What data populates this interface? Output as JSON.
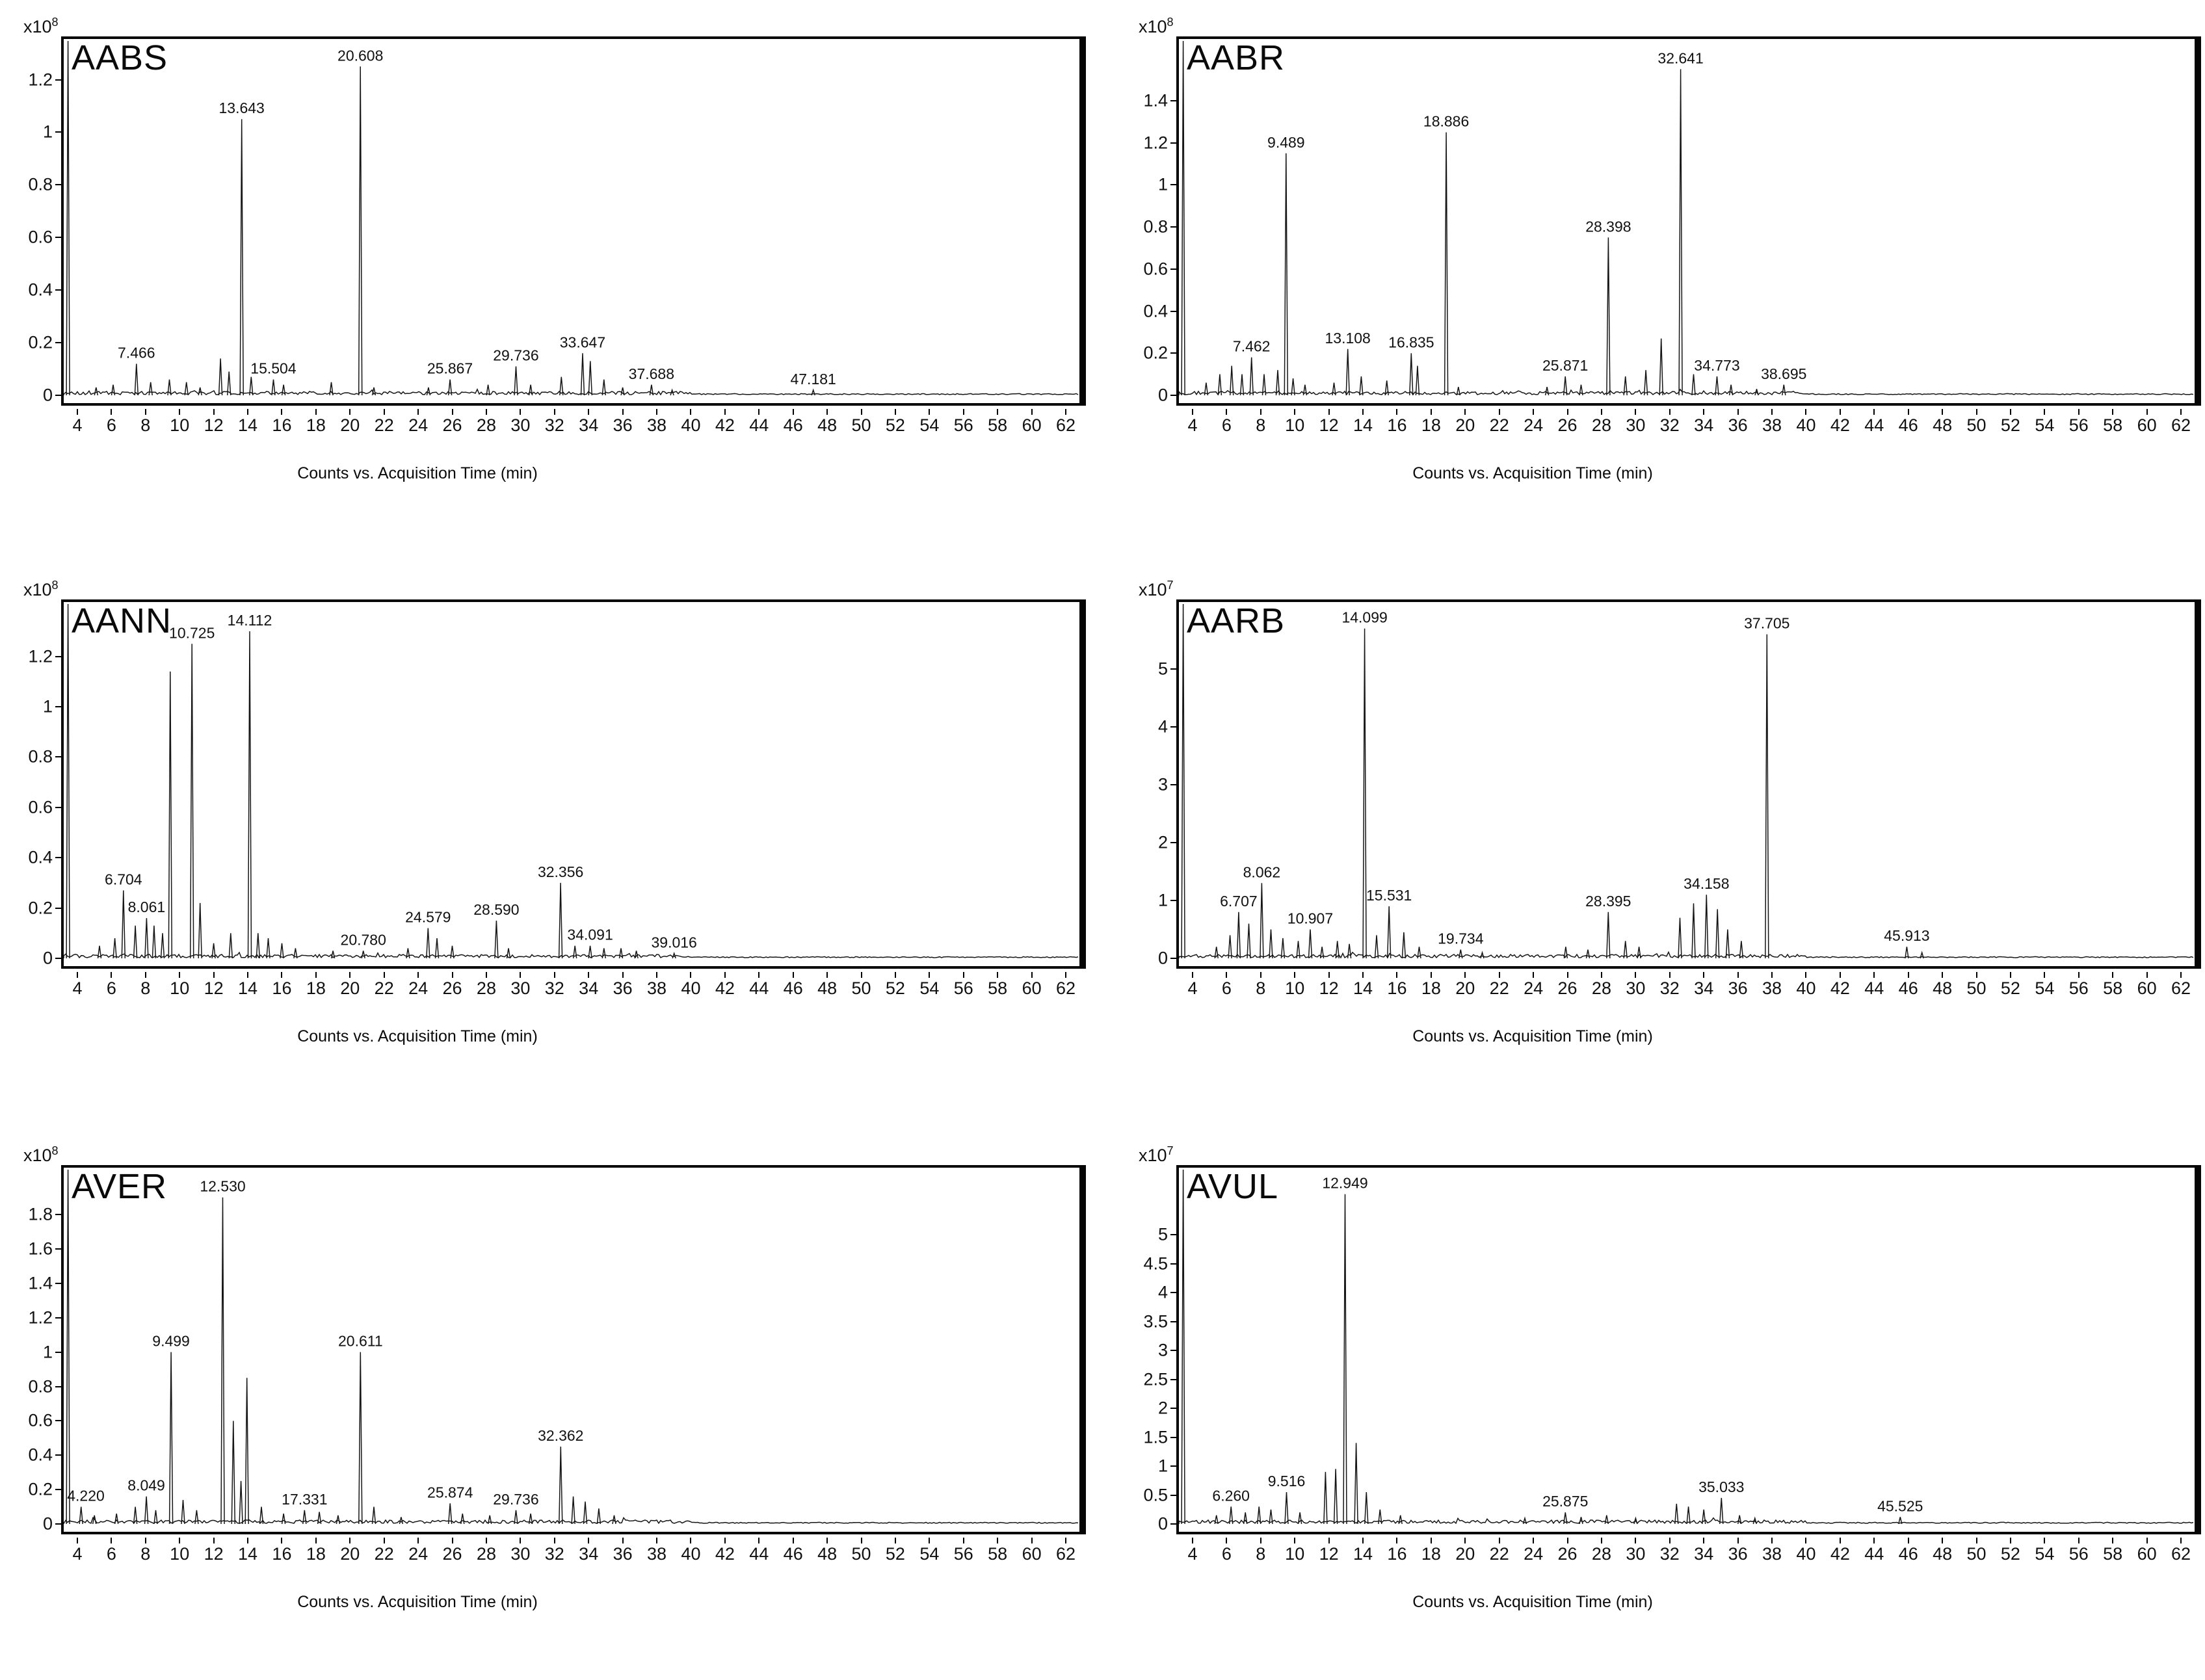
{
  "chart_data": [
    {
      "type": "line",
      "title": "AABS",
      "y_scale_base": "x10",
      "y_scale_exp": "8",
      "xlabel": "Counts vs. Acquisition Time (min)",
      "xlim": [
        3.2,
        62.8
      ],
      "ylim": [
        0,
        1.32
      ],
      "x_ticks": [
        4,
        6,
        8,
        10,
        12,
        14,
        16,
        18,
        20,
        22,
        24,
        26,
        28,
        30,
        32,
        34,
        36,
        38,
        40,
        42,
        44,
        46,
        48,
        50,
        52,
        54,
        56,
        58,
        60,
        62
      ],
      "y_ticks": [
        {
          "v": 0,
          "label": "0"
        },
        {
          "v": 0.2,
          "label": "0.2"
        },
        {
          "v": 0.4,
          "label": "0.4"
        },
        {
          "v": 0.6,
          "label": "0.6"
        },
        {
          "v": 0.8,
          "label": "0.8"
        },
        {
          "v": 1,
          "label": "1"
        },
        {
          "v": 1.2,
          "label": "1.2"
        }
      ],
      "peaks": [
        {
          "rt": 7.466,
          "h": 0.12,
          "label": "7.466"
        },
        {
          "rt": 13.643,
          "h": 1.05,
          "label": "13.643"
        },
        {
          "rt": 15.504,
          "h": 0.06,
          "label": "15.504"
        },
        {
          "rt": 20.608,
          "h": 1.25,
          "label": "20.608"
        },
        {
          "rt": 25.867,
          "h": 0.06,
          "label": "25.867"
        },
        {
          "rt": 29.736,
          "h": 0.11,
          "label": "29.736"
        },
        {
          "rt": 33.647,
          "h": 0.16,
          "label": "33.647"
        },
        {
          "rt": 37.688,
          "h": 0.04,
          "label": "37.688"
        },
        {
          "rt": 47.181,
          "h": 0.02,
          "label": "47.181"
        }
      ],
      "unlabeled_peaks": [
        [
          5.1,
          0.03
        ],
        [
          6.1,
          0.04
        ],
        [
          8.3,
          0.05
        ],
        [
          9.4,
          0.06
        ],
        [
          10.4,
          0.05
        ],
        [
          11.2,
          0.03
        ],
        [
          12.4,
          0.14
        ],
        [
          12.9,
          0.09
        ],
        [
          14.2,
          0.07
        ],
        [
          16.1,
          0.04
        ],
        [
          18.9,
          0.05
        ],
        [
          21.4,
          0.03
        ],
        [
          24.6,
          0.03
        ],
        [
          28.1,
          0.04
        ],
        [
          30.6,
          0.04
        ],
        [
          32.4,
          0.07
        ],
        [
          34.1,
          0.13
        ],
        [
          34.9,
          0.06
        ],
        [
          36.0,
          0.03
        ],
        [
          38.9,
          0.02
        ]
      ]
    },
    {
      "type": "line",
      "title": "AABR",
      "y_scale_base": "x10",
      "y_scale_exp": "8",
      "xlabel": "Counts vs. Acquisition Time (min)",
      "xlim": [
        3.2,
        62.8
      ],
      "ylim": [
        0,
        1.65
      ],
      "x_ticks": [
        4,
        6,
        8,
        10,
        12,
        14,
        16,
        18,
        20,
        22,
        24,
        26,
        28,
        30,
        32,
        34,
        36,
        38,
        40,
        42,
        44,
        46,
        48,
        50,
        52,
        54,
        56,
        58,
        60,
        62
      ],
      "y_ticks": [
        {
          "v": 0,
          "label": "0"
        },
        {
          "v": 0.2,
          "label": "0.2"
        },
        {
          "v": 0.4,
          "label": "0.4"
        },
        {
          "v": 0.6,
          "label": "0.6"
        },
        {
          "v": 0.8,
          "label": "0.8"
        },
        {
          "v": 1,
          "label": "1"
        },
        {
          "v": 1.2,
          "label": "1.2"
        },
        {
          "v": 1.4,
          "label": "1.4"
        }
      ],
      "peaks": [
        {
          "rt": 7.462,
          "h": 0.18,
          "label": "7.462"
        },
        {
          "rt": 9.489,
          "h": 1.15,
          "label": "9.489"
        },
        {
          "rt": 13.108,
          "h": 0.22,
          "label": "13.108"
        },
        {
          "rt": 16.835,
          "h": 0.2,
          "label": "16.835"
        },
        {
          "rt": 18.886,
          "h": 1.25,
          "label": "18.886"
        },
        {
          "rt": 25.871,
          "h": 0.09,
          "label": "25.871"
        },
        {
          "rt": 28.398,
          "h": 0.75,
          "label": "28.398"
        },
        {
          "rt": 32.641,
          "h": 1.55,
          "label": "32.641"
        },
        {
          "rt": 34.773,
          "h": 0.09,
          "label": "34.773"
        },
        {
          "rt": 38.695,
          "h": 0.05,
          "label": "38.695"
        }
      ],
      "unlabeled_peaks": [
        [
          4.8,
          0.06
        ],
        [
          5.6,
          0.1
        ],
        [
          6.3,
          0.14
        ],
        [
          6.9,
          0.1
        ],
        [
          8.2,
          0.1
        ],
        [
          9.0,
          0.12
        ],
        [
          9.9,
          0.08
        ],
        [
          10.6,
          0.05
        ],
        [
          12.3,
          0.06
        ],
        [
          13.9,
          0.09
        ],
        [
          15.4,
          0.07
        ],
        [
          17.2,
          0.14
        ],
        [
          19.6,
          0.04
        ],
        [
          24.8,
          0.04
        ],
        [
          26.8,
          0.05
        ],
        [
          29.4,
          0.09
        ],
        [
          30.6,
          0.12
        ],
        [
          31.5,
          0.27
        ],
        [
          33.4,
          0.1
        ],
        [
          35.6,
          0.05
        ],
        [
          37.1,
          0.03
        ]
      ]
    },
    {
      "type": "line",
      "title": "AANN",
      "y_scale_base": "x10",
      "y_scale_exp": "8",
      "xlabel": "Counts vs. Acquisition Time (min)",
      "xlim": [
        3.2,
        62.8
      ],
      "ylim": [
        0,
        1.38
      ],
      "x_ticks": [
        4,
        6,
        8,
        10,
        12,
        14,
        16,
        18,
        20,
        22,
        24,
        26,
        28,
        30,
        32,
        34,
        36,
        38,
        40,
        42,
        44,
        46,
        48,
        50,
        52,
        54,
        56,
        58,
        60,
        62
      ],
      "y_ticks": [
        {
          "v": 0,
          "label": "0"
        },
        {
          "v": 0.2,
          "label": "0.2"
        },
        {
          "v": 0.4,
          "label": "0.4"
        },
        {
          "v": 0.6,
          "label": "0.6"
        },
        {
          "v": 0.8,
          "label": "0.8"
        },
        {
          "v": 1,
          "label": "1"
        },
        {
          "v": 1.2,
          "label": "1.2"
        }
      ],
      "peaks": [
        {
          "rt": 6.704,
          "h": 0.27,
          "label": "6.704"
        },
        {
          "rt": 8.061,
          "h": 0.16,
          "label": "8.061"
        },
        {
          "rt": 10.725,
          "h": 1.25,
          "label": "10.725"
        },
        {
          "rt": 14.112,
          "h": 1.3,
          "label": "14.112"
        },
        {
          "rt": 20.78,
          "h": 0.03,
          "label": "20.780"
        },
        {
          "rt": 24.579,
          "h": 0.12,
          "label": "24.579"
        },
        {
          "rt": 28.59,
          "h": 0.15,
          "label": "28.590"
        },
        {
          "rt": 32.356,
          "h": 0.3,
          "label": "32.356"
        },
        {
          "rt": 34.091,
          "h": 0.05,
          "label": "34.091"
        },
        {
          "rt": 39.016,
          "h": 0.02,
          "label": "39.016"
        }
      ],
      "unlabeled_peaks": [
        [
          5.3,
          0.05
        ],
        [
          6.2,
          0.08
        ],
        [
          7.4,
          0.13
        ],
        [
          8.5,
          0.13
        ],
        [
          9.0,
          0.1
        ],
        [
          9.45,
          1.14
        ],
        [
          11.2,
          0.22
        ],
        [
          12.0,
          0.06
        ],
        [
          13.0,
          0.1
        ],
        [
          14.6,
          0.1
        ],
        [
          15.2,
          0.08
        ],
        [
          16.0,
          0.06
        ],
        [
          16.8,
          0.04
        ],
        [
          19.0,
          0.03
        ],
        [
          23.4,
          0.04
        ],
        [
          25.1,
          0.08
        ],
        [
          26.0,
          0.05
        ],
        [
          29.3,
          0.04
        ],
        [
          33.2,
          0.05
        ],
        [
          34.9,
          0.04
        ],
        [
          35.9,
          0.04
        ],
        [
          36.8,
          0.03
        ]
      ]
    },
    {
      "type": "line",
      "title": "AARB",
      "y_scale_base": "x10",
      "y_scale_exp": "7",
      "xlabel": "Counts vs. Acquisition Time (min)",
      "xlim": [
        3.2,
        62.8
      ],
      "ylim": [
        0,
        6.0
      ],
      "x_ticks": [
        4,
        6,
        8,
        10,
        12,
        14,
        16,
        18,
        20,
        22,
        24,
        26,
        28,
        30,
        32,
        34,
        36,
        38,
        40,
        42,
        44,
        46,
        48,
        50,
        52,
        54,
        56,
        58,
        60,
        62
      ],
      "y_ticks": [
        {
          "v": 0,
          "label": "0"
        },
        {
          "v": 1,
          "label": "1"
        },
        {
          "v": 2,
          "label": "2"
        },
        {
          "v": 3,
          "label": "3"
        },
        {
          "v": 4,
          "label": "4"
        },
        {
          "v": 5,
          "label": "5"
        }
      ],
      "peaks": [
        {
          "rt": 6.707,
          "h": 0.8,
          "label": "6.707"
        },
        {
          "rt": 8.062,
          "h": 1.3,
          "label": "8.062"
        },
        {
          "rt": 10.907,
          "h": 0.5,
          "label": "10.907"
        },
        {
          "rt": 14.099,
          "h": 5.7,
          "label": "14.099"
        },
        {
          "rt": 15.531,
          "h": 0.9,
          "label": "15.531"
        },
        {
          "rt": 19.734,
          "h": 0.15,
          "label": "19.734"
        },
        {
          "rt": 28.395,
          "h": 0.8,
          "label": "28.395"
        },
        {
          "rt": 34.158,
          "h": 1.1,
          "label": "34.158"
        },
        {
          "rt": 37.705,
          "h": 5.6,
          "label": "37.705"
        },
        {
          "rt": 45.913,
          "h": 0.2,
          "label": "45.913"
        }
      ],
      "unlabeled_peaks": [
        [
          5.4,
          0.2
        ],
        [
          6.2,
          0.4
        ],
        [
          7.3,
          0.6
        ],
        [
          8.6,
          0.5
        ],
        [
          9.3,
          0.35
        ],
        [
          10.2,
          0.3
        ],
        [
          11.6,
          0.2
        ],
        [
          12.5,
          0.3
        ],
        [
          13.2,
          0.25
        ],
        [
          14.8,
          0.4
        ],
        [
          16.4,
          0.45
        ],
        [
          17.3,
          0.2
        ],
        [
          21.0,
          0.1
        ],
        [
          25.9,
          0.2
        ],
        [
          27.2,
          0.15
        ],
        [
          29.4,
          0.3
        ],
        [
          30.2,
          0.2
        ],
        [
          32.6,
          0.7
        ],
        [
          33.4,
          0.95
        ],
        [
          34.8,
          0.85
        ],
        [
          35.4,
          0.5
        ],
        [
          36.2,
          0.3
        ],
        [
          46.8,
          0.1
        ]
      ]
    },
    {
      "type": "line",
      "title": "AVER",
      "y_scale_base": "x10",
      "y_scale_exp": "8",
      "xlabel": "Counts vs. Acquisition Time (min)",
      "xlim": [
        3.2,
        62.8
      ],
      "ylim": [
        0,
        2.02
      ],
      "x_ticks": [
        4,
        6,
        8,
        10,
        12,
        14,
        16,
        18,
        20,
        22,
        24,
        26,
        28,
        30,
        32,
        34,
        36,
        38,
        40,
        42,
        44,
        46,
        48,
        50,
        52,
        54,
        56,
        58,
        60,
        62
      ],
      "y_ticks": [
        {
          "v": 0,
          "label": "0"
        },
        {
          "v": 0.2,
          "label": "0.2"
        },
        {
          "v": 0.4,
          "label": "0.4"
        },
        {
          "v": 0.6,
          "label": "0.6"
        },
        {
          "v": 0.8,
          "label": "0.8"
        },
        {
          "v": 1,
          "label": "1"
        },
        {
          "v": 1.2,
          "label": "1.2"
        },
        {
          "v": 1.4,
          "label": "1.4"
        },
        {
          "v": 1.6,
          "label": "1.6"
        },
        {
          "v": 1.8,
          "label": "1.8"
        }
      ],
      "peaks": [
        {
          "rt": 4.22,
          "h": 0.1,
          "label": "4.220"
        },
        {
          "rt": 8.049,
          "h": 0.16,
          "label": "8.049"
        },
        {
          "rt": 9.499,
          "h": 1.0,
          "label": "9.499"
        },
        {
          "rt": 12.53,
          "h": 1.9,
          "label": "12.530"
        },
        {
          "rt": 17.331,
          "h": 0.08,
          "label": "17.331"
        },
        {
          "rt": 20.611,
          "h": 1.0,
          "label": "20.611"
        },
        {
          "rt": 25.874,
          "h": 0.12,
          "label": "25.874"
        },
        {
          "rt": 29.736,
          "h": 0.08,
          "label": "29.736"
        },
        {
          "rt": 32.362,
          "h": 0.45,
          "label": "32.362"
        }
      ],
      "unlabeled_peaks": [
        [
          5.0,
          0.05
        ],
        [
          6.3,
          0.06
        ],
        [
          7.4,
          0.1
        ],
        [
          8.6,
          0.08
        ],
        [
          10.2,
          0.14
        ],
        [
          11.0,
          0.08
        ],
        [
          13.15,
          0.6
        ],
        [
          13.6,
          0.25
        ],
        [
          13.95,
          0.85
        ],
        [
          14.8,
          0.1
        ],
        [
          16.1,
          0.06
        ],
        [
          18.2,
          0.07
        ],
        [
          19.3,
          0.05
        ],
        [
          21.4,
          0.1
        ],
        [
          23.0,
          0.04
        ],
        [
          26.6,
          0.06
        ],
        [
          28.2,
          0.05
        ],
        [
          30.6,
          0.06
        ],
        [
          33.1,
          0.16
        ],
        [
          33.8,
          0.13
        ],
        [
          34.6,
          0.09
        ],
        [
          35.5,
          0.05
        ]
      ]
    },
    {
      "type": "line",
      "title": "AVUL",
      "y_scale_base": "x10",
      "y_scale_exp": "7",
      "xlabel": "Counts vs. Acquisition Time (min)",
      "xlim": [
        3.2,
        62.8
      ],
      "ylim": [
        0,
        6.0
      ],
      "x_ticks": [
        4,
        6,
        8,
        10,
        12,
        14,
        16,
        18,
        20,
        22,
        24,
        26,
        28,
        30,
        32,
        34,
        36,
        38,
        40,
        42,
        44,
        46,
        48,
        50,
        52,
        54,
        56,
        58,
        60,
        62
      ],
      "y_ticks": [
        {
          "v": 0,
          "label": "0"
        },
        {
          "v": 0.5,
          "label": "0.5"
        },
        {
          "v": 1,
          "label": "1"
        },
        {
          "v": 1.5,
          "label": "1.5"
        },
        {
          "v": 2,
          "label": "2"
        },
        {
          "v": 2.5,
          "label": "2.5"
        },
        {
          "v": 3,
          "label": "3"
        },
        {
          "v": 3.5,
          "label": "3.5"
        },
        {
          "v": 4,
          "label": "4"
        },
        {
          "v": 4.5,
          "label": "4.5"
        },
        {
          "v": 5,
          "label": "5"
        }
      ],
      "peaks": [
        {
          "rt": 6.26,
          "h": 0.3,
          "label": "6.260"
        },
        {
          "rt": 9.516,
          "h": 0.55,
          "label": "9.516"
        },
        {
          "rt": 12.949,
          "h": 5.7,
          "label": "12.949"
        },
        {
          "rt": 25.875,
          "h": 0.2,
          "label": "25.875"
        },
        {
          "rt": 35.033,
          "h": 0.45,
          "label": "35.033"
        },
        {
          "rt": 45.525,
          "h": 0.12,
          "label": "45.525"
        }
      ],
      "unlabeled_peaks": [
        [
          5.4,
          0.15
        ],
        [
          7.1,
          0.2
        ],
        [
          7.9,
          0.3
        ],
        [
          8.6,
          0.25
        ],
        [
          10.3,
          0.2
        ],
        [
          11.8,
          0.9
        ],
        [
          12.4,
          0.95
        ],
        [
          13.6,
          1.4
        ],
        [
          14.2,
          0.55
        ],
        [
          15.0,
          0.25
        ],
        [
          16.2,
          0.15
        ],
        [
          23.5,
          0.1
        ],
        [
          26.8,
          0.12
        ],
        [
          28.3,
          0.15
        ],
        [
          30.0,
          0.1
        ],
        [
          32.4,
          0.35
        ],
        [
          33.1,
          0.3
        ],
        [
          34.0,
          0.25
        ],
        [
          36.1,
          0.15
        ],
        [
          37.0,
          0.1
        ]
      ]
    }
  ]
}
